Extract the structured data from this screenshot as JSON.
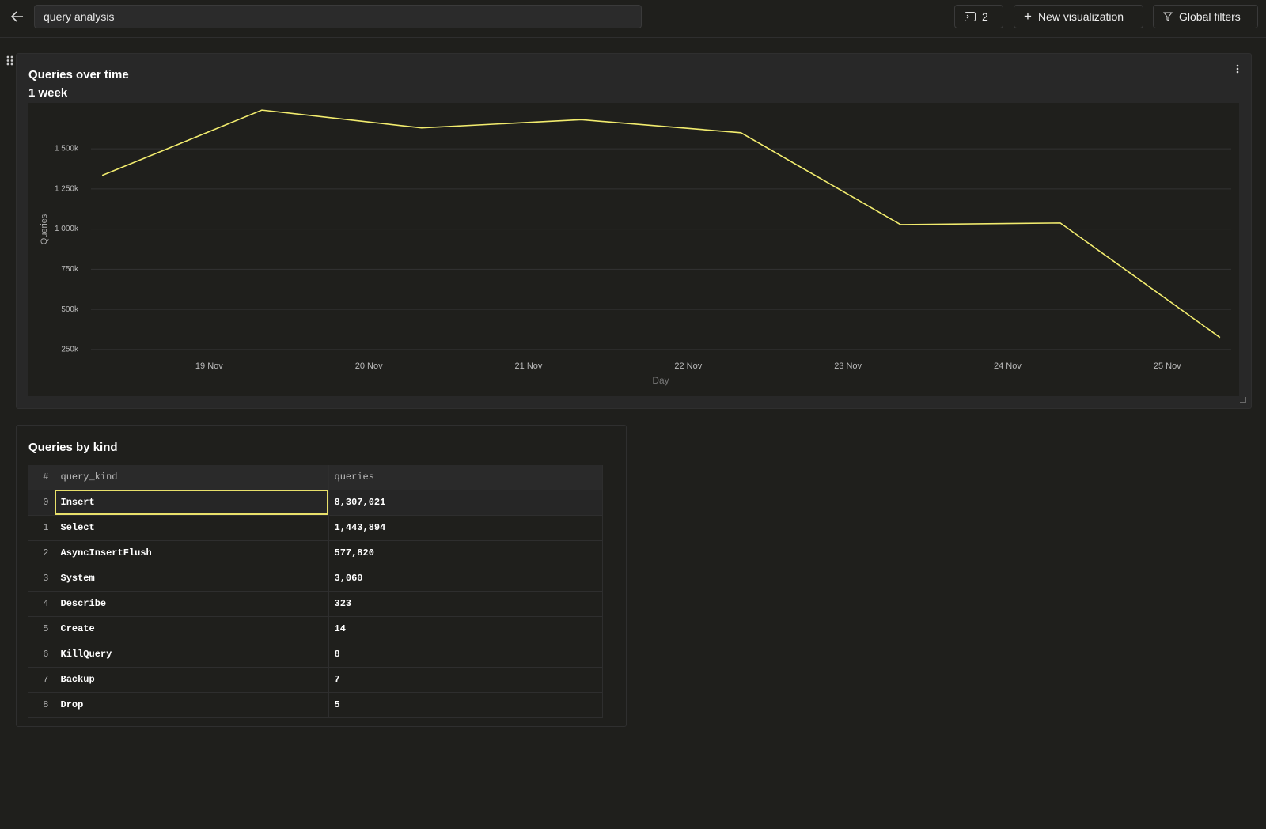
{
  "header": {
    "search": "query analysis",
    "count": 2,
    "buttons": [
      "New visualization",
      "Global filters"
    ]
  },
  "chart_panel": {
    "title": "Queries over time",
    "subtitle": "1 week",
    "chart": {
      "type": "line",
      "x_label": "Day",
      "y_label": "Queries",
      "x": [
        18.33,
        19.33,
        20.33,
        21.33,
        22.33,
        23.33,
        24.33,
        25.33
      ],
      "values": [
        1334000,
        1741000,
        1630000,
        1681000,
        1600000,
        1028000,
        1038000,
        325000
      ],
      "color": "#f2ec6e",
      "xlim": [
        18.26,
        25.4
      ],
      "xticks": [
        {
          "value": 19,
          "label": "19 Nov"
        },
        {
          "value": 20,
          "label": "20 Nov"
        },
        {
          "value": 21,
          "label": "21 Nov"
        },
        {
          "value": 22,
          "label": "22 Nov"
        },
        {
          "value": 23,
          "label": "23 Nov"
        },
        {
          "value": 24,
          "label": "24 Nov"
        },
        {
          "value": 25,
          "label": "25 Nov"
        }
      ],
      "ylim": [
        215000,
        1786000
      ],
      "yticks": [
        {
          "value": 250000,
          "label": "250k"
        },
        {
          "value": 500000,
          "label": "500k"
        },
        {
          "value": 750000,
          "label": "750k"
        },
        {
          "value": 1000000,
          "label": "1 000k"
        },
        {
          "value": 1250000,
          "label": "1 250k"
        },
        {
          "value": 1500000,
          "label": "1 500k"
        }
      ],
      "grid": true
    }
  },
  "table_panel": {
    "title": "Queries by kind",
    "columns": [
      "#",
      "query_kind",
      "queries"
    ],
    "rows": [
      [
        0,
        "Insert",
        "8,307,021"
      ],
      [
        1,
        "Select",
        "1,443,894"
      ],
      [
        2,
        "AsyncInsertFlush",
        "577,820"
      ],
      [
        3,
        "System",
        "3,060"
      ],
      [
        4,
        "Describe",
        "323"
      ],
      [
        5,
        "Create",
        "14"
      ],
      [
        6,
        "KillQuery",
        "8"
      ],
      [
        7,
        "Backup",
        "7"
      ],
      [
        8,
        "Drop",
        "5"
      ]
    ]
  }
}
